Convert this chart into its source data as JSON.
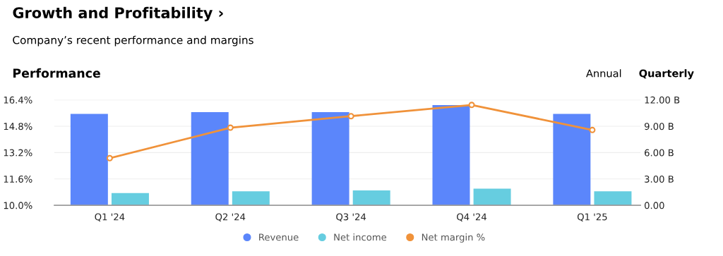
{
  "chart_data": {
    "type": "bar",
    "title": "Growth and Profitability ›",
    "subtitle": "Company’s recent performance and margins",
    "annotations": [
      "Performance",
      "Annual",
      "Quarterly"
    ],
    "categories": [
      "Q1 '24",
      "Q2 '24",
      "Q3 '24",
      "Q4 '24",
      "Q1 '25"
    ],
    "series": [
      {
        "name": "Revenue",
        "axis": "y2",
        "color": "#5b86fb",
        "values": [
          10.4,
          10.6,
          10.6,
          11.4,
          10.4
        ]
      },
      {
        "name": "Net income",
        "axis": "y2",
        "color": "#66cde0",
        "values": [
          1.4,
          1.6,
          1.7,
          1.9,
          1.6
        ]
      },
      {
        "name": "Net margin %",
        "type": "line",
        "axis": "y",
        "color": "#f0923a",
        "values": [
          12.86,
          14.71,
          15.41,
          16.09,
          14.57
        ]
      }
    ],
    "ylim": [
      10.0,
      16.4
    ],
    "yticks": [
      {
        "value": 10.0,
        "label": "10.0%"
      },
      {
        "value": 11.6,
        "label": "11.6%"
      },
      {
        "value": 13.2,
        "label": "13.2%"
      },
      {
        "value": 14.8,
        "label": "14.8%"
      },
      {
        "value": 16.4,
        "label": "16.4%"
      }
    ],
    "y2lim": [
      0,
      12
    ],
    "y2ticks": [
      {
        "value": 0,
        "label": "0.00"
      },
      {
        "value": 3,
        "label": "3.00 B"
      },
      {
        "value": 6,
        "label": "6.00 B"
      },
      {
        "value": 9,
        "label": "9.00 B"
      },
      {
        "value": 12,
        "label": "12.00 B"
      }
    ],
    "grid": "y",
    "legend": "bottom",
    "marker": "circle",
    "line_style": "solid"
  }
}
